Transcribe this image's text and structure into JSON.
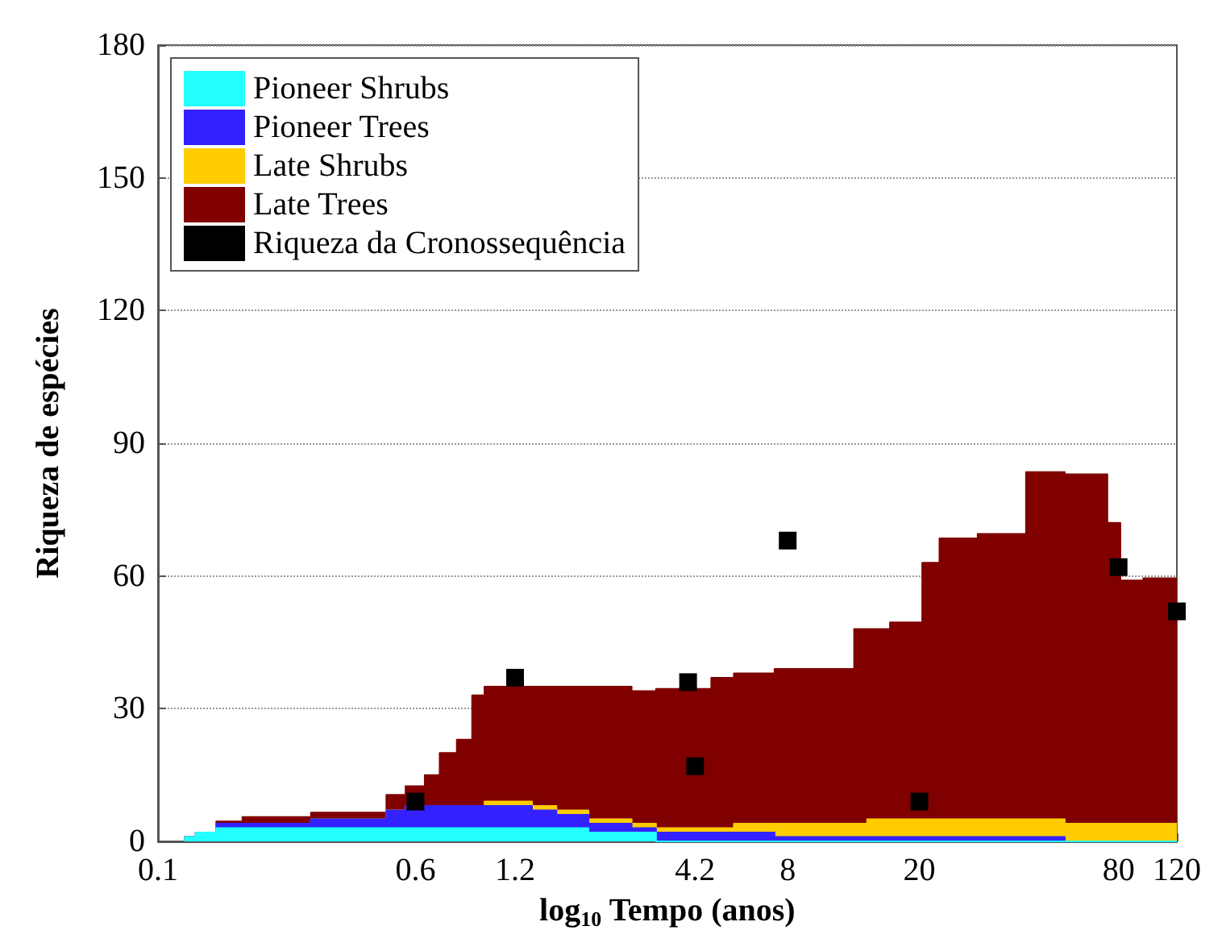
{
  "chart_data": {
    "type": "area",
    "stacked": true,
    "log": "x",
    "xlabel": "log$_{10}$ Tempo (anos)",
    "ylabel": "Riqueza de espécies",
    "x": [
      0.12,
      0.13,
      0.13,
      0.15,
      0.15,
      0.18,
      0.18,
      0.29,
      0.29,
      0.49,
      0.49,
      0.56,
      0.56,
      0.64,
      0.64,
      0.71,
      0.71,
      0.8,
      0.8,
      0.89,
      0.89,
      0.97,
      0.97,
      1.35,
      1.35,
      1.6,
      1.6,
      2,
      2,
      2.7,
      2.7,
      3.2,
      3.2,
      4.7,
      4.7,
      5.5,
      5.5,
      7.3,
      7.3,
      12.7,
      12.7,
      13.9,
      13.9,
      16.3,
      16.3,
      20.4,
      20.4,
      23,
      23,
      30,
      30,
      42,
      42,
      55,
      55,
      74,
      74,
      81,
      81,
      95,
      95,
      120
    ],
    "series": [
      {
        "name": "Pioneer Shrubs",
        "color": "#22ffff",
        "values": [
          1,
          1,
          2,
          2,
          3,
          3,
          3,
          3,
          3,
          3,
          3,
          3,
          3,
          3,
          3,
          3,
          3,
          3,
          3,
          3,
          3,
          3,
          3,
          3,
          3,
          3,
          3,
          3,
          2,
          2,
          2,
          2,
          0,
          0,
          0,
          0,
          0,
          0,
          0,
          0,
          0,
          0,
          0,
          0,
          0,
          0,
          0,
          0,
          0,
          0,
          0,
          0,
          0,
          0,
          0,
          0,
          0,
          0,
          0,
          0,
          0,
          0
        ]
      },
      {
        "name": "Pioneer Trees",
        "color": "#3322ff",
        "values": [
          0,
          0,
          0,
          0,
          1,
          1,
          1,
          1,
          2,
          2,
          4,
          4,
          5,
          5,
          5,
          5,
          5,
          5,
          5,
          5,
          5,
          5,
          5,
          5,
          4,
          4,
          3,
          3,
          2,
          2,
          1,
          1,
          2,
          2,
          2,
          2,
          2,
          2,
          1,
          1,
          1,
          1,
          1,
          1,
          1,
          1,
          1,
          1,
          1,
          1,
          1,
          1,
          1,
          1,
          0,
          0,
          0,
          0,
          0,
          0,
          0,
          0
        ]
      },
      {
        "name": "Late Shrubs",
        "color": "#ffcc00",
        "values": [
          0,
          0,
          0,
          0,
          0,
          0,
          0,
          0,
          0,
          0,
          0,
          0,
          0,
          0,
          0,
          0,
          0,
          0,
          0,
          0,
          0,
          0,
          1,
          1,
          1,
          1,
          1,
          1,
          1,
          1,
          1,
          1,
          1,
          1,
          1,
          1,
          2,
          2,
          3,
          3,
          3,
          3,
          4,
          4,
          4,
          4,
          4,
          4,
          4,
          4,
          4,
          4,
          4,
          4,
          4,
          4,
          4,
          4,
          4,
          4,
          4,
          4
        ]
      },
      {
        "name": "Late Trees",
        "color": "#800000",
        "values": [
          0,
          0,
          0,
          0,
          0.5,
          0.5,
          1.5,
          1.5,
          1.5,
          1.5,
          3.5,
          3.5,
          4.5,
          4.5,
          7,
          7,
          12,
          12,
          15,
          15,
          25,
          25,
          26,
          26,
          27,
          27,
          28,
          28,
          30,
          30,
          30,
          30,
          31.5,
          31.5,
          34,
          34,
          34,
          34,
          35,
          35,
          44,
          44,
          43,
          43,
          44.5,
          44.5,
          58,
          58,
          63.5,
          63.5,
          64.5,
          64.5,
          78.5,
          78.5,
          79,
          79,
          68,
          68,
          55,
          55,
          55.5,
          55.5
        ]
      },
      {
        "name": "Riqueza da Cronossequência",
        "type": "scatter",
        "marker": "square",
        "color": "#000000",
        "x": [
          0.6,
          1.2,
          4,
          4.2,
          8,
          20,
          80,
          120
        ],
        "values": [
          9,
          37,
          36,
          17,
          68,
          9,
          62,
          52
        ]
      }
    ],
    "xlim": [
      0.1,
      120
    ],
    "xticks": [
      0.1,
      0.6,
      1.2,
      4.2,
      8,
      20,
      80,
      120
    ],
    "ylim": [
      0,
      180
    ],
    "yticks": [
      0,
      30,
      60,
      90,
      120,
      150,
      180
    ],
    "grid": "y",
    "legend": "top left"
  }
}
